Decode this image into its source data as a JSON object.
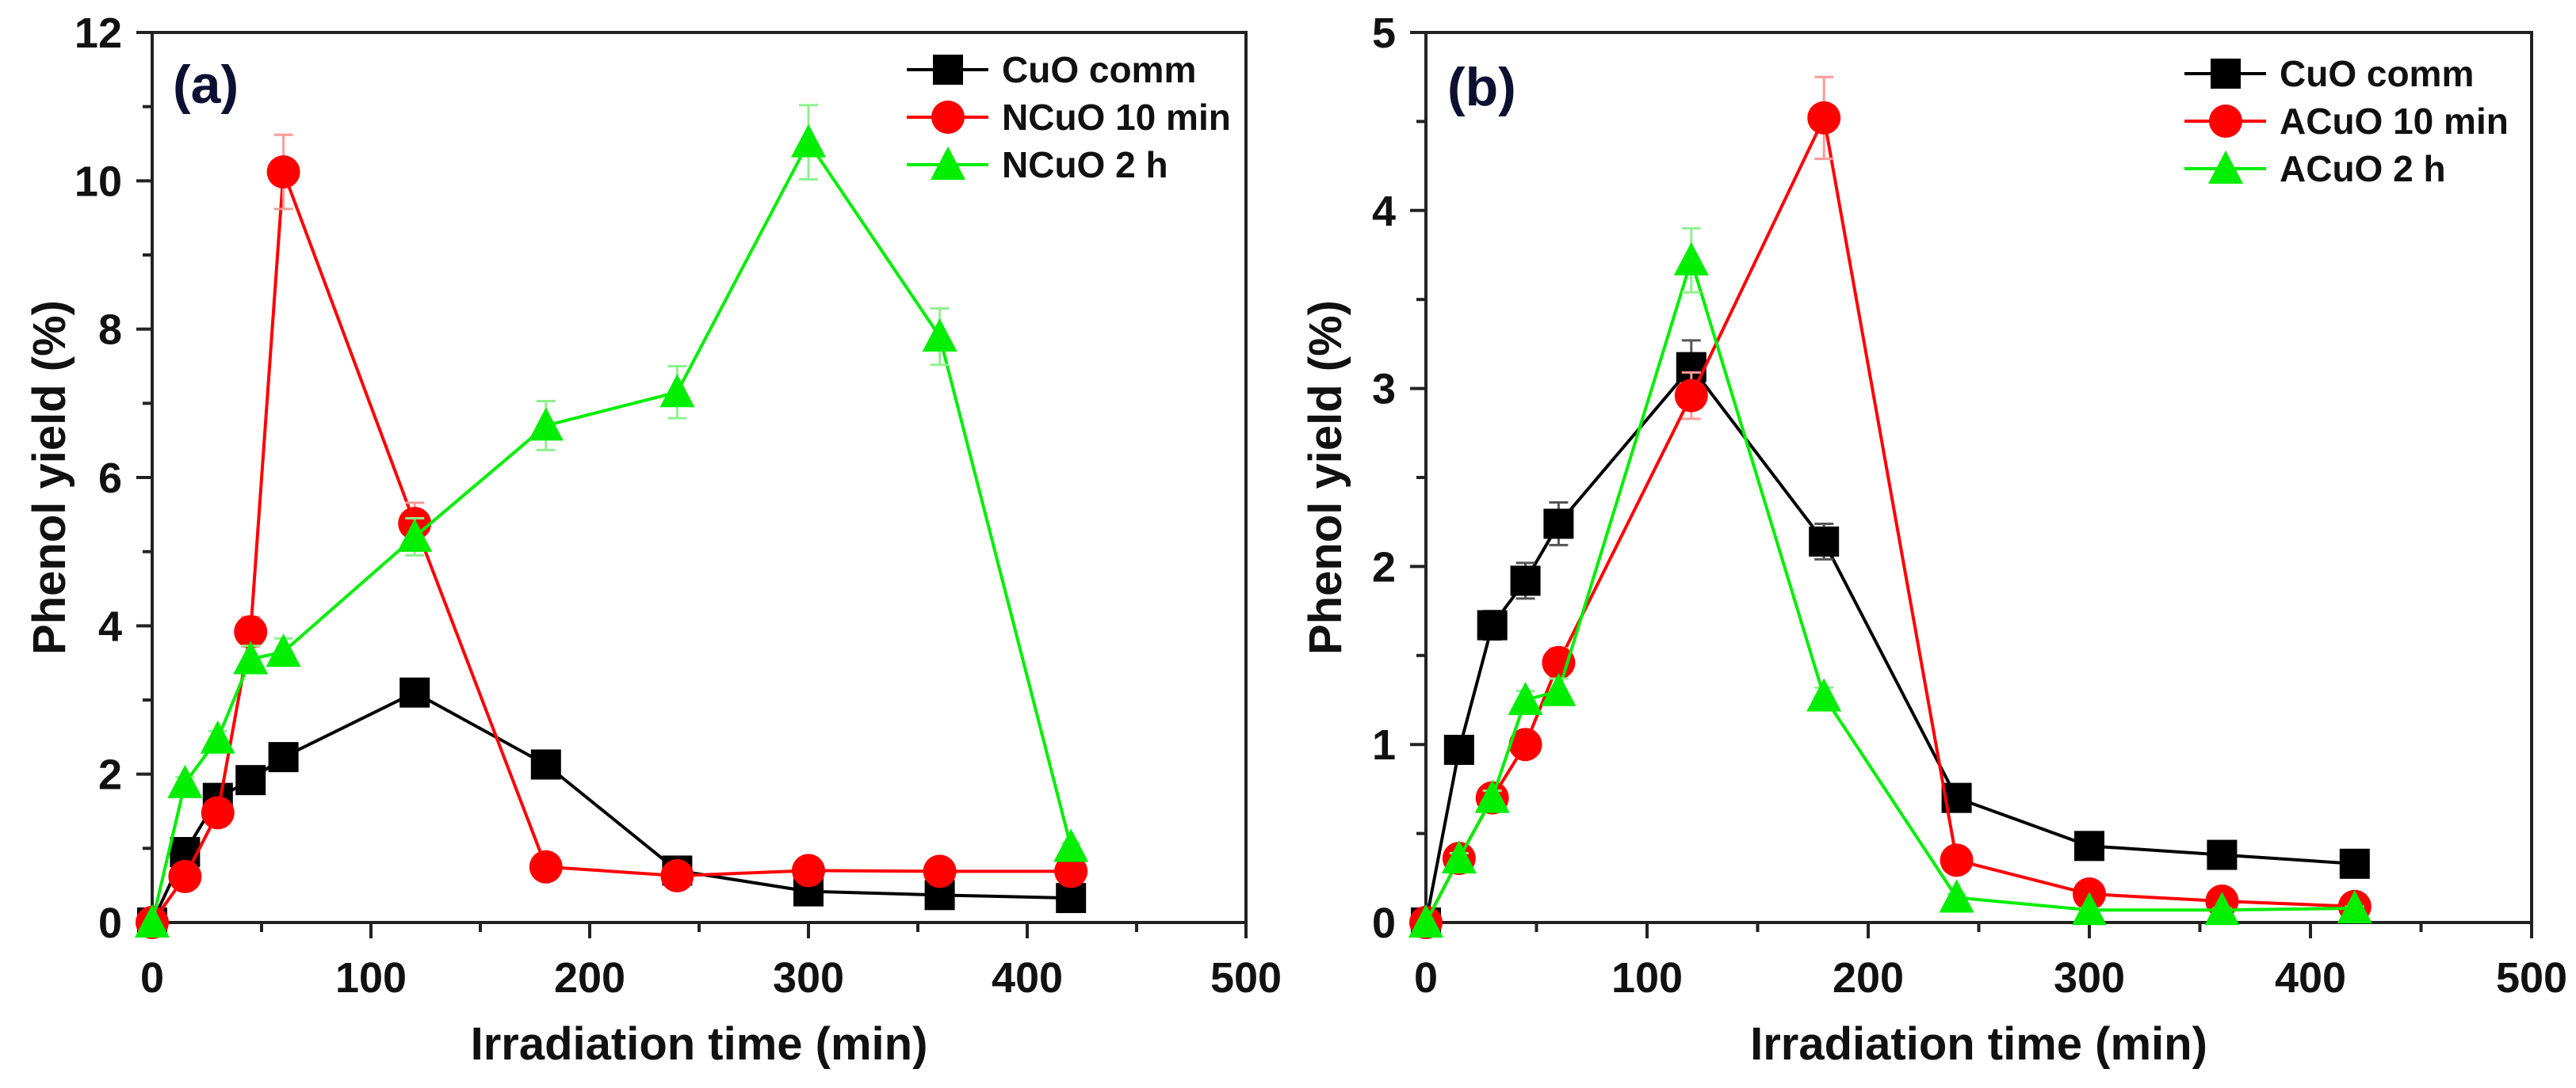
{
  "chart_data": [
    {
      "type": "line",
      "panel_label": "(a)",
      "xlabel": "Irradiation time (min)",
      "ylabel": "Phenol yield (%)",
      "xlim": [
        0,
        500
      ],
      "ylim": [
        0,
        12
      ],
      "xticks": [
        0,
        100,
        200,
        300,
        400,
        500
      ],
      "yticks": [
        0,
        2,
        4,
        6,
        8,
        10,
        12
      ],
      "legend_position": "top-right",
      "x": [
        0,
        15,
        30,
        45,
        60,
        120,
        180,
        240,
        300,
        360,
        420
      ],
      "series": [
        {
          "name": "CuO comm",
          "color": "#000000",
          "marker": "square",
          "values": [
            0,
            0.95,
            1.68,
            1.92,
            2.23,
            3.1,
            2.13,
            0.7,
            0.42,
            0.37,
            0.33
          ],
          "errors": [
            0,
            0.05,
            0.08,
            0.08,
            0.1,
            0.15,
            0.1,
            0.05,
            0.04,
            0.04,
            0.03
          ]
        },
        {
          "name": "NCuO 10 min",
          "color": "#ff0000",
          "marker": "circle",
          "values": [
            0,
            0.62,
            1.48,
            3.92,
            10.12,
            5.38,
            0.75,
            0.63,
            0.7,
            0.69,
            0.69
          ],
          "errors": [
            0,
            0.05,
            0.1,
            0.2,
            0.5,
            0.28,
            0.05,
            0.05,
            0.05,
            0.05,
            0.05
          ]
        },
        {
          "name": "NCuO 2 h",
          "color": "#00ee00",
          "marker": "triangle",
          "values": [
            0,
            1.88,
            2.48,
            3.55,
            3.65,
            5.2,
            6.7,
            7.15,
            10.52,
            7.9,
            1.02
          ],
          "errors": [
            0,
            0.08,
            0.1,
            0.18,
            0.18,
            0.25,
            0.33,
            0.35,
            0.5,
            0.38,
            0.05
          ]
        }
      ]
    },
    {
      "type": "line",
      "panel_label": "(b)",
      "xlabel": "Irradiation time (min)",
      "ylabel": "Phenol yield (%)",
      "xlim": [
        0,
        500
      ],
      "ylim": [
        0,
        5
      ],
      "xticks": [
        0,
        100,
        200,
        300,
        400,
        500
      ],
      "yticks": [
        0,
        1,
        2,
        3,
        4,
        5
      ],
      "legend_position": "top-right",
      "x": [
        0,
        15,
        30,
        45,
        60,
        120,
        180,
        240,
        300,
        360,
        420
      ],
      "series": [
        {
          "name": "CuO comm",
          "color": "#000000",
          "marker": "square",
          "values": [
            0,
            0.97,
            1.67,
            1.92,
            2.24,
            3.12,
            2.14,
            0.7,
            0.43,
            0.38,
            0.33
          ],
          "errors": [
            0,
            0.04,
            0.08,
            0.1,
            0.12,
            0.15,
            0.1,
            0.03,
            0.03,
            0.02,
            0.02
          ]
        },
        {
          "name": "ACuO 10 min",
          "color": "#ff0000",
          "marker": "circle",
          "values": [
            0,
            0.36,
            0.7,
            1.0,
            1.46,
            2.96,
            4.52,
            0.35,
            0.16,
            0.12,
            0.09
          ],
          "errors": [
            0,
            0.03,
            0.04,
            0.05,
            0.08,
            0.13,
            0.23,
            0.03,
            0.02,
            0.02,
            0.02
          ]
        },
        {
          "name": "ACuO 2 h",
          "color": "#00ee00",
          "marker": "triangle",
          "values": [
            0,
            0.36,
            0.7,
            1.25,
            1.3,
            3.72,
            1.27,
            0.14,
            0.07,
            0.07,
            0.08
          ],
          "errors": [
            0,
            0.03,
            0.04,
            0.05,
            0.07,
            0.18,
            0.05,
            0.02,
            0.01,
            0.01,
            0.01
          ]
        }
      ]
    }
  ]
}
